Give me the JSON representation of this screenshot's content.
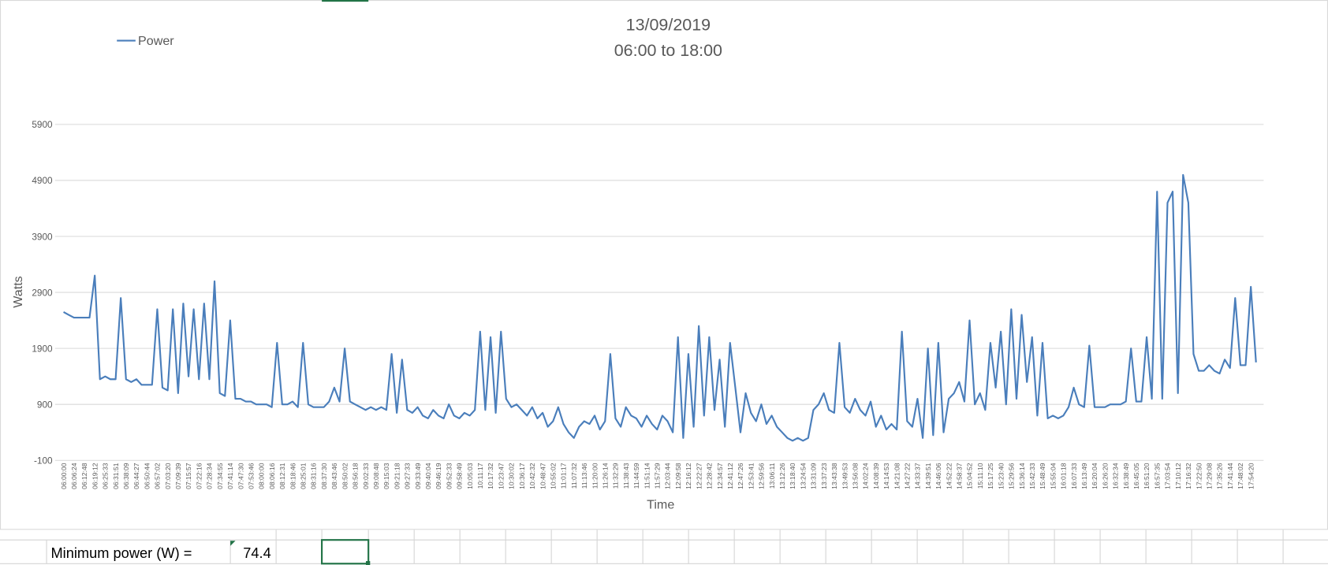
{
  "chart_data": {
    "type": "line",
    "title": "13/09/2019",
    "subtitle": "06:00 to 18:00",
    "x_label": "Time",
    "y_label": "Watts",
    "legend": "top-left",
    "grid": true,
    "ylim": [
      -100,
      5900
    ],
    "yticks": [
      -100,
      900,
      1900,
      2900,
      3900,
      4900,
      5900
    ],
    "categories": [
      "06:00:00",
      null,
      "06:06:24",
      null,
      "06:12:48",
      null,
      "06:19:12",
      null,
      "06:25:33",
      null,
      "06:31:51",
      null,
      "06:38:09",
      null,
      "06:44:27",
      null,
      "06:50:44",
      null,
      "06:57:02",
      null,
      "07:03:20",
      null,
      "07:09:39",
      null,
      "07:15:57",
      null,
      "07:22:16",
      null,
      "07:28:34",
      null,
      "07:34:55",
      null,
      "07:41:14",
      null,
      "07:47:30",
      null,
      "07:53:46",
      null,
      "08:00:00",
      null,
      "08:06:16",
      null,
      "08:12:31",
      null,
      "08:18:46",
      null,
      "08:25:01",
      null,
      "08:31:16",
      null,
      "08:37:30",
      null,
      "08:43:46",
      null,
      "08:50:02",
      null,
      "08:56:18",
      null,
      "09:02:33",
      null,
      "09:08:48",
      null,
      "09:15:03",
      null,
      "09:21:18",
      null,
      "09:27:33",
      null,
      "09:33:49",
      null,
      "09:40:04",
      null,
      "09:46:19",
      null,
      "09:52:33",
      null,
      "09:58:49",
      null,
      "10:05:03",
      null,
      "10:11:17",
      null,
      "10:17:32",
      null,
      "10:23:47",
      null,
      "10:30:02",
      null,
      "10:36:17",
      null,
      "10:42:32",
      null,
      "10:48:47",
      null,
      "10:55:02",
      null,
      "11:01:17",
      null,
      "11:07:32",
      null,
      "11:13:46",
      null,
      "11:20:00",
      null,
      "11:26:14",
      null,
      "11:32:29",
      null,
      "11:38:43",
      null,
      "11:44:59",
      null,
      "11:51:14",
      null,
      "11:57:29",
      null,
      "12:03:44",
      null,
      "12:09:58",
      null,
      "12:16:12",
      null,
      "12:22:27",
      null,
      "12:28:42",
      null,
      "12:34:57",
      null,
      "12:41:12",
      null,
      "12:47:26",
      null,
      "12:53:41",
      null,
      "12:59:56",
      null,
      "13:06:11",
      null,
      "13:12:26",
      null,
      "13:18:40",
      null,
      "13:24:54",
      null,
      "13:31:09",
      null,
      "13:37:23",
      null,
      "13:43:38",
      null,
      "13:49:53",
      null,
      "13:56:08",
      null,
      "14:02:24",
      null,
      "14:08:39",
      null,
      "14:14:53",
      null,
      "14:21:08",
      null,
      "14:27:22",
      null,
      "14:33:37",
      null,
      "14:39:51",
      null,
      "14:46:06",
      null,
      "14:52:22",
      null,
      "14:58:37",
      null,
      "15:04:52",
      null,
      "15:11:10",
      null,
      "15:17:25",
      null,
      "15:23:40",
      null,
      "15:29:56",
      null,
      "15:36:14",
      null,
      "15:42:33",
      null,
      "15:48:49",
      null,
      "15:55:04",
      null,
      "16:01:18",
      null,
      "16:07:33",
      null,
      "16:13:49",
      null,
      "16:20:04",
      null,
      "16:26:20",
      null,
      "16:32:34",
      null,
      "16:38:49",
      null,
      "16:45:05",
      null,
      "16:51:20",
      null,
      "16:57:35",
      null,
      "17:03:54",
      null,
      "17:10:12",
      null,
      "17:16:32",
      null,
      "17:22:50",
      null,
      "17:29:08",
      null,
      "17:35:26",
      null,
      "17:41:44",
      null,
      "17:48:02",
      null,
      "17:54:20",
      null
    ],
    "series": [
      {
        "name": "Power",
        "color": "#4a7ebb",
        "values": [
          2550,
          2500,
          2450,
          2450,
          2450,
          2450,
          3200,
          1350,
          1400,
          1350,
          1350,
          2800,
          1350,
          1300,
          1350,
          1250,
          1250,
          1250,
          2600,
          1200,
          1150,
          2600,
          1100,
          2700,
          1400,
          2600,
          1350,
          2700,
          1350,
          3100,
          1100,
          1050,
          2400,
          1000,
          1000,
          950,
          950,
          900,
          900,
          900,
          850,
          2000,
          900,
          900,
          950,
          850,
          2000,
          900,
          850,
          850,
          850,
          950,
          1200,
          950,
          1900,
          950,
          900,
          850,
          800,
          850,
          800,
          850,
          800,
          1800,
          750,
          1700,
          800,
          750,
          850,
          700,
          650,
          800,
          700,
          650,
          900,
          700,
          650,
          750,
          700,
          800,
          2200,
          800,
          2100,
          750,
          2200,
          1000,
          850,
          900,
          800,
          700,
          850,
          650,
          750,
          500,
          600,
          850,
          550,
          400,
          300,
          500,
          600,
          550,
          700,
          450,
          600,
          1800,
          650,
          500,
          850,
          700,
          650,
          500,
          700,
          550,
          450,
          700,
          600,
          400,
          2100,
          300,
          1800,
          500,
          2300,
          700,
          2100,
          800,
          1700,
          500,
          2000,
          1200,
          400,
          1100,
          750,
          600,
          900,
          550,
          700,
          500,
          400,
          300,
          250,
          300,
          250,
          300,
          800,
          900,
          1100,
          800,
          750,
          2000,
          850,
          750,
          1000,
          800,
          700,
          950,
          500,
          700,
          450,
          550,
          450,
          2200,
          600,
          500,
          1000,
          300,
          1900,
          350,
          2000,
          400,
          1000,
          1100,
          1300,
          950,
          2400,
          900,
          1100,
          800,
          2000,
          1200,
          2200,
          900,
          2600,
          1000,
          2500,
          1300,
          2100,
          700,
          2000,
          650,
          700,
          650,
          700,
          850,
          1200,
          900,
          850,
          1950,
          850,
          850,
          850,
          900,
          900,
          900,
          950,
          1900,
          950,
          950,
          2100,
          1000,
          4700,
          1000,
          4500,
          4700,
          1100,
          5000,
          4500,
          1800,
          1500,
          1500,
          1600,
          1500,
          1450,
          1700,
          1550,
          2800,
          1600,
          1600,
          3000,
          1650
        ]
      }
    ]
  },
  "sheet": {
    "label": "Minimum power (W) =",
    "value": 74.4
  }
}
